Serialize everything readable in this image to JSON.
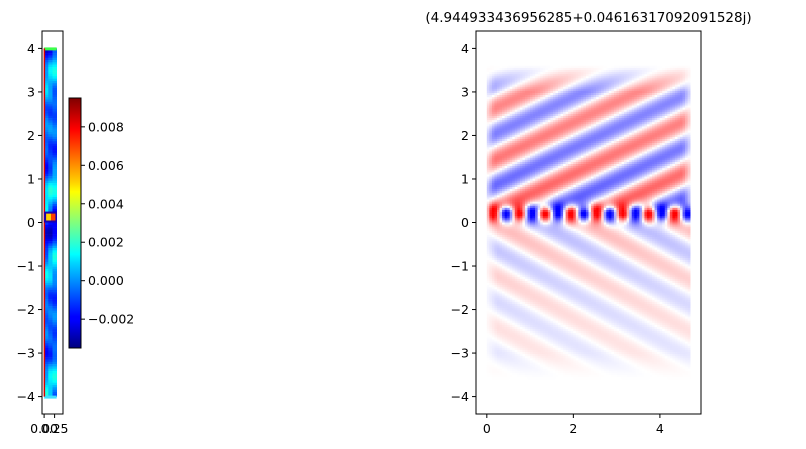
{
  "chart_data": [
    {
      "type": "heatmap",
      "panel": "left",
      "colormap": "jet",
      "x_tick_labels": [
        "0.00",
        "0.25"
      ],
      "x_ticks": [
        0.0,
        0.25
      ],
      "xlim": [
        -0.05,
        0.45
      ],
      "ylim": [
        -4.4,
        4.4
      ],
      "y_ticks": [
        -4,
        -3,
        -2,
        -1,
        0,
        1,
        2,
        3,
        4
      ],
      "y_tick_labels": [
        "−4",
        "−3",
        "−2",
        "−1",
        "0",
        "1",
        "2",
        "3",
        "4"
      ],
      "structure": {
        "waveguide_x": [
          0.0,
          0.3
        ],
        "top_boundary_y": 4.0,
        "bottom_boundary_y": -4.0,
        "source_box_y": [
          0.0,
          0.25
        ]
      }
    },
    {
      "type": "colorbar",
      "panel": "colorbar",
      "colormap": "jet",
      "vmin": -0.0035,
      "vmax": 0.0095,
      "ticks": [
        -0.002,
        0.0,
        0.002,
        0.004,
        0.006,
        0.008
      ],
      "tick_labels": [
        "−0.002",
        "0.000",
        "0.002",
        "0.004",
        "0.006",
        "0.008"
      ]
    },
    {
      "type": "heatmap",
      "panel": "right",
      "colormap": "bwr",
      "title": "(4.944933436956285+0.04616317092091528j)",
      "xlim": [
        -0.25,
        4.95
      ],
      "ylim": [
        -4.4,
        4.4
      ],
      "x_ticks": [
        0,
        2,
        4
      ],
      "x_tick_labels": [
        "0",
        "2",
        "4"
      ],
      "y_ticks": [
        -4,
        -3,
        -2,
        -1,
        0,
        1,
        2,
        3,
        4
      ],
      "y_tick_labels": [
        "−4",
        "−3",
        "−2",
        "−1",
        "0",
        "1",
        "2",
        "3",
        "4"
      ],
      "field_extent": {
        "x": [
          0,
          4.7
        ],
        "y": [
          -3.6,
          3.6
        ]
      },
      "interface_y": 0.2
    }
  ]
}
